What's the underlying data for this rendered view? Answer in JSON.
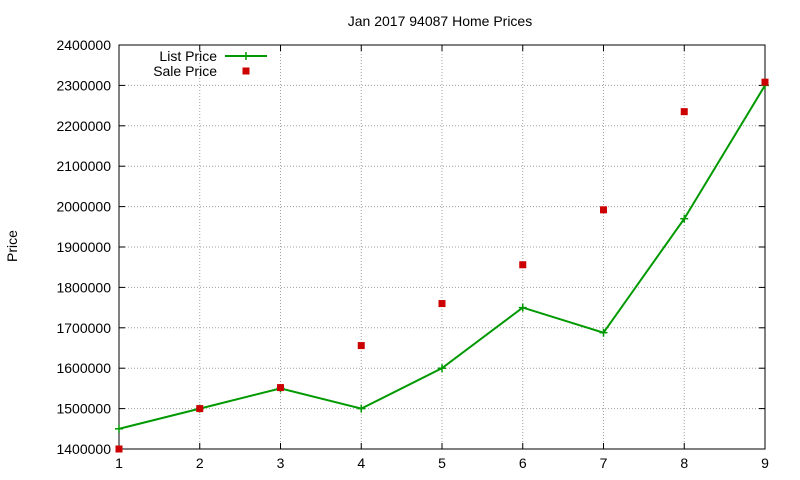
{
  "chart_data": {
    "type": "line",
    "title": "Jan 2017 94087 Home Prices",
    "xlabel": "",
    "ylabel": "Price",
    "xlim": [
      1,
      9
    ],
    "ylim": [
      1400000,
      2400000
    ],
    "grid": true,
    "legend_position": "top-left",
    "x": [
      1,
      2,
      3,
      4,
      5,
      6,
      7,
      8,
      9
    ],
    "x_ticks": [
      "1",
      "2",
      "3",
      "4",
      "5",
      "6",
      "7",
      "8",
      "9"
    ],
    "y_ticks": [
      "1400000",
      "1500000",
      "1600000",
      "1700000",
      "1800000",
      "1900000",
      "2000000",
      "2100000",
      "2200000",
      "2300000",
      "2400000"
    ],
    "y_tick_values": [
      1400000,
      1500000,
      1600000,
      1700000,
      1800000,
      1900000,
      2000000,
      2100000,
      2200000,
      2300000,
      2400000
    ],
    "series": [
      {
        "name": "List Price",
        "style": "linespoints",
        "color": "#009900",
        "values": [
          1450000,
          1500000,
          1550000,
          1500000,
          1600000,
          1750000,
          1688000,
          1970000,
          2300000
        ]
      },
      {
        "name": "Sale Price",
        "style": "points",
        "color": "#cc0000",
        "values": [
          1400000,
          1500000,
          1552000,
          1656000,
          1760000,
          1856000,
          1992000,
          2235000,
          2308000
        ]
      }
    ]
  }
}
